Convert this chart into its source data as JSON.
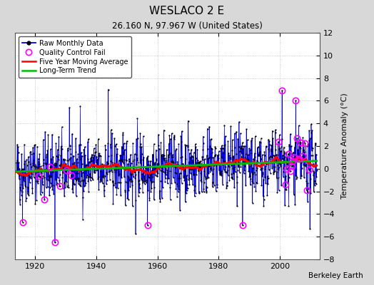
{
  "title": "WESLACO 2 E",
  "subtitle": "26.160 N, 97.967 W (United States)",
  "ylabel": "Temperature Anomaly (°C)",
  "credit": "Berkeley Earth",
  "start_year": 1914,
  "end_year": 2012,
  "ylim": [
    -8,
    12
  ],
  "yticks": [
    -8,
    -6,
    -4,
    -2,
    0,
    2,
    4,
    6,
    8,
    10,
    12
  ],
  "xticks": [
    1920,
    1940,
    1960,
    1980,
    2000
  ],
  "bg_color": "#d8d8d8",
  "plot_bg_color": "#ffffff",
  "grid_color": "#bbbbbb",
  "line_color": "#0000dd",
  "ma_color": "#ff0000",
  "trend_color": "#00bb00",
  "qc_color": "#ff00ff",
  "dot_color": "#000000",
  "legend_loc": "upper left",
  "seed": 42
}
